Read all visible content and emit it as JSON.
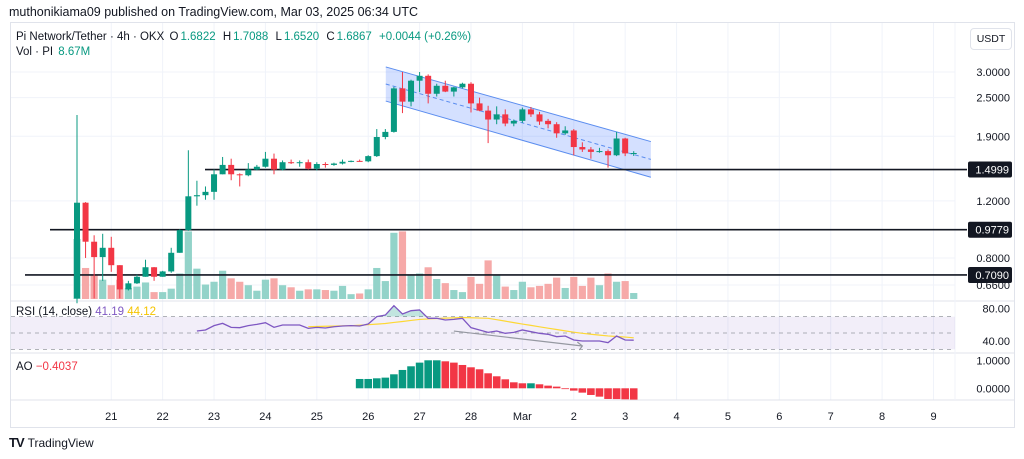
{
  "publisher_line": "muthonikiama09 published on TradingView.com, Mar 03, 2025 06:34 UTC",
  "legend": {
    "symbol": "Pi Network/Tether · 4h · OKX",
    "o_label": "O",
    "o": "1.6822",
    "h_label": "H",
    "h": "1.7088",
    "l_label": "L",
    "l": "1.6520",
    "c_label": "C",
    "c": "1.6867",
    "change": "+0.0044 (+0.26%)",
    "vol_label": "Vol · PI",
    "vol": "8.67M"
  },
  "currency_button": "USDT",
  "rsi_legend": {
    "label": "RSI (14, close)",
    "value": "41.19",
    "ma_value": "44.12"
  },
  "ao_legend": {
    "label": "AO",
    "value": "−0.4037"
  },
  "footer_logo": "TradingView",
  "colors": {
    "up": "#089981",
    "down": "#f23645",
    "vol_up": "#93d3c9",
    "vol_down": "#f6a9a8",
    "channel": "#2962ff",
    "rsi": "#7e57c2",
    "rsi_ma": "#fdd835"
  },
  "chart_data": {
    "type": "candlestick",
    "interval": "4h",
    "first_candle_time": "2025-02-20 08:00",
    "candle_fields": [
      "open",
      "high",
      "low",
      "close",
      "volume_M"
    ],
    "candles": [
      [
        0.6,
        2.21,
        0.58,
        1.185,
        87
      ],
      [
        1.185,
        1.19,
        0.8,
        0.898,
        45
      ],
      [
        0.898,
        0.94,
        0.6,
        0.805,
        35
      ],
      [
        0.805,
        0.95,
        0.68,
        0.86,
        28
      ],
      [
        0.86,
        0.93,
        0.725,
        0.76,
        20
      ],
      [
        0.76,
        0.76,
        0.6,
        0.64,
        28
      ],
      [
        0.64,
        0.68,
        0.635,
        0.668,
        16
      ],
      [
        0.668,
        0.71,
        0.665,
        0.7,
        18
      ],
      [
        0.7,
        0.79,
        0.7,
        0.749,
        24
      ],
      [
        0.749,
        0.75,
        0.68,
        0.7,
        10
      ],
      [
        0.7,
        0.73,
        0.7,
        0.727,
        10
      ],
      [
        0.727,
        0.86,
        0.72,
        0.83,
        15
      ],
      [
        0.83,
        0.98,
        0.83,
        0.975,
        37
      ],
      [
        0.975,
        1.72,
        0.97,
        1.24,
        98
      ],
      [
        1.24,
        1.385,
        1.16,
        1.25,
        44
      ],
      [
        1.25,
        1.33,
        1.21,
        1.28,
        21
      ],
      [
        1.28,
        1.5,
        1.21,
        1.45,
        25
      ],
      [
        1.45,
        1.64,
        1.45,
        1.55,
        41
      ],
      [
        1.55,
        1.62,
        1.39,
        1.45,
        30
      ],
      [
        1.45,
        1.46,
        1.33,
        1.44,
        25
      ],
      [
        1.44,
        1.57,
        1.43,
        1.5,
        20
      ],
      [
        1.5,
        1.55,
        1.49,
        1.53,
        12
      ],
      [
        1.53,
        1.7,
        1.52,
        1.62,
        28
      ],
      [
        1.62,
        1.68,
        1.45,
        1.5,
        30
      ],
      [
        1.5,
        1.6,
        1.49,
        1.58,
        20
      ],
      [
        1.58,
        1.61,
        1.56,
        1.575,
        17
      ],
      [
        1.575,
        1.6,
        1.53,
        1.58,
        12
      ],
      [
        1.58,
        1.61,
        1.5,
        1.51,
        14
      ],
      [
        1.51,
        1.58,
        1.49,
        1.56,
        14
      ],
      [
        1.56,
        1.58,
        1.52,
        1.55,
        13
      ],
      [
        1.55,
        1.575,
        1.54,
        1.565,
        12
      ],
      [
        1.565,
        1.61,
        1.555,
        1.585,
        19
      ],
      [
        1.585,
        1.6,
        1.58,
        1.595,
        7
      ],
      [
        1.595,
        1.61,
        1.585,
        1.59,
        8
      ],
      [
        1.59,
        1.66,
        1.58,
        1.65,
        14
      ],
      [
        1.65,
        2.0,
        1.64,
        1.89,
        45
      ],
      [
        1.89,
        2.0,
        1.86,
        1.96,
        26
      ],
      [
        1.96,
        2.7,
        1.95,
        2.67,
        96
      ],
      [
        2.67,
        3.0,
        2.24,
        2.43,
        98
      ],
      [
        2.43,
        2.84,
        2.35,
        2.82,
        34
      ],
      [
        2.82,
        3.0,
        2.6,
        2.92,
        37
      ],
      [
        2.92,
        2.95,
        2.4,
        2.57,
        46
      ],
      [
        2.57,
        2.76,
        2.52,
        2.72,
        29
      ],
      [
        2.72,
        2.82,
        2.6,
        2.61,
        23
      ],
      [
        2.61,
        2.7,
        2.52,
        2.69,
        13
      ],
      [
        2.69,
        2.78,
        2.67,
        2.76,
        10
      ],
      [
        2.76,
        2.79,
        2.25,
        2.4,
        32
      ],
      [
        2.4,
        2.5,
        2.27,
        2.28,
        22
      ],
      [
        2.28,
        2.36,
        1.81,
        2.14,
        56
      ],
      [
        2.14,
        2.35,
        2.07,
        2.22,
        34
      ],
      [
        2.22,
        2.3,
        2.04,
        2.08,
        18
      ],
      [
        2.08,
        2.14,
        2.04,
        2.12,
        13
      ],
      [
        2.12,
        2.33,
        2.09,
        2.3,
        25
      ],
      [
        2.3,
        2.34,
        2.18,
        2.22,
        17
      ],
      [
        2.22,
        2.26,
        2.06,
        2.11,
        19
      ],
      [
        2.12,
        2.15,
        2.01,
        2.07,
        22
      ],
      [
        2.07,
        2.1,
        1.88,
        1.94,
        31
      ],
      [
        1.94,
        2.04,
        1.92,
        1.98,
        16
      ],
      [
        1.98,
        2.0,
        1.66,
        1.76,
        32
      ],
      [
        1.76,
        1.82,
        1.7,
        1.73,
        19
      ],
      [
        1.73,
        1.76,
        1.62,
        1.7,
        31
      ],
      [
        1.7,
        1.75,
        1.69,
        1.71,
        20
      ],
      [
        1.71,
        1.73,
        1.52,
        1.66,
        37
      ],
      [
        1.66,
        1.96,
        1.65,
        1.87,
        25
      ],
      [
        1.87,
        1.88,
        1.65,
        1.6822,
        26
      ],
      [
        1.6822,
        1.7088,
        1.652,
        1.6867,
        8.67
      ]
    ],
    "price_axis": {
      "scale": "log",
      "ticks": [
        "3.0000",
        "2.5000",
        "1.9000",
        "1.2000",
        "0.8000",
        "0.6600"
      ]
    },
    "horizontal_levels": [
      "1.4999",
      "0.9779",
      "0.7090"
    ],
    "descending_channel": {
      "start_time": "2025-02-26 08:00",
      "end_time": "2025-03-03 12:00",
      "upper": [
        3.11,
        1.83
      ],
      "lower": [
        2.44,
        1.42
      ]
    },
    "x_axis_labels": [
      "21",
      "22",
      "23",
      "24",
      "25",
      "26",
      "27",
      "28",
      "Mar",
      "2",
      "3",
      "4",
      "5",
      "6",
      "7",
      "8",
      "9"
    ],
    "rsi": {
      "first_candle_index": 14,
      "values": [
        52.4,
        53.7,
        59.0,
        61.8,
        56.9,
        56.5,
        59.0,
        60.6,
        62.6,
        56.9,
        59.8,
        59.8,
        59.8,
        55.7,
        56.9,
        56.1,
        57.7,
        58.6,
        59.0,
        58.6,
        61.0,
        70.0,
        72.0,
        83.5,
        73.3,
        77.3,
        78.2,
        68.0,
        68.0,
        65.9,
        66.7,
        68.0,
        56.5,
        53.7,
        50.8,
        52.4,
        49.6,
        50.8,
        53.7,
        51.6,
        49.6,
        48.4,
        45.5,
        46.3,
        41.4,
        40.2,
        40.2,
        40.2,
        38.2,
        46.3,
        41.4,
        41.19
      ],
      "ma_first_candle_index": 27,
      "ma_values": [
        57.7,
        58.0,
        58.3,
        58.5,
        58.7,
        58.9,
        59.5,
        60.2,
        60.9,
        61.6,
        62.9,
        64.1,
        65.4,
        66.6,
        67.2,
        67.7,
        68.2,
        68.6,
        69.0,
        68.7,
        68.3,
        68.0,
        66.3,
        64.5,
        62.7,
        60.9,
        59.3,
        57.6,
        55.9,
        54.3,
        52.6,
        51.0,
        49.6,
        48.5,
        47.4,
        46.4,
        45.7,
        45.0,
        44.12
      ],
      "bands": [
        70,
        50,
        30
      ],
      "axis_ticks": [
        "80.00",
        "40.00"
      ],
      "divergence_line": {
        "from": [
          44,
          52.4
        ],
        "to": [
          59,
          34.1
        ]
      }
    },
    "ao": {
      "first_candle_index": 33,
      "values": [
        0.333,
        0.333,
        0.357,
        0.381,
        0.5,
        0.655,
        0.786,
        0.917,
        1.0,
        1.0,
        0.964,
        0.917,
        0.833,
        0.75,
        0.679,
        0.536,
        0.429,
        0.321,
        0.214,
        0.179,
        0.179,
        0.143,
        0.095,
        0.06,
        0.0,
        -0.083,
        -0.155,
        -0.238,
        -0.298,
        -0.381,
        -0.385,
        -0.393,
        -0.4037
      ],
      "axis_ticks": [
        "1.0000",
        "0.0000"
      ]
    }
  }
}
